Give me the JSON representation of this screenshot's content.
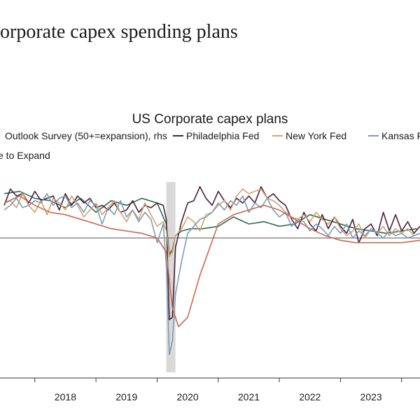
{
  "page": {
    "heading": "orporate capex spending plans"
  },
  "chart_data": {
    "type": "line",
    "title": "US Corporate capex plans",
    "xlabel": "",
    "ylabel": "",
    "x_tick_labels": [
      "2018",
      "2019",
      "2020",
      "2021",
      "2022",
      "2023"
    ],
    "x_tick_positions": [
      2018.5,
      2019.5,
      2020.5,
      2021.5,
      2022.5,
      2023.5
    ],
    "xlim": [
      2017.43,
      2024.3
    ],
    "ylim": [
      -3.0,
      1.35
    ],
    "reference_line": 0,
    "shaded_period": [
      2020.15,
      2020.3
    ],
    "colors": {
      "shade": "#d9d9d9",
      "reference": "#555555",
      "axis": "#333333"
    },
    "series": [
      {
        "name": "Outlook Survey (50+=expansion), rhs",
        "color": "#2e6b4f",
        "legend_label": "Outlook Survey (50+=expansion), rhs",
        "x": [
          2017.5,
          2017.75,
          2018.0,
          2018.25,
          2018.5,
          2018.75,
          2019.0,
          2019.25,
          2019.5,
          2019.75,
          2020.0,
          2020.15,
          2020.2,
          2020.25,
          2020.3,
          2020.4,
          2020.55,
          2020.75,
          2021.0,
          2021.25,
          2021.5,
          2021.75,
          2022.0,
          2022.25,
          2022.5,
          2022.75,
          2023.0,
          2023.25,
          2023.5,
          2023.75,
          2024.0,
          2024.25
        ],
        "y": [
          0.95,
          1.0,
          0.85,
          0.8,
          0.65,
          0.85,
          0.55,
          0.8,
          0.7,
          0.85,
          0.75,
          0.3,
          -0.35,
          -0.25,
          0.05,
          0.15,
          0.2,
          0.2,
          0.25,
          0.45,
          0.3,
          0.35,
          0.25,
          0.3,
          0.5,
          0.4,
          0.3,
          0.2,
          0.15,
          0.1,
          0.15,
          0.2
        ]
      },
      {
        "name": "Philadelphia Fed",
        "color": "#4a1f3d",
        "legend_label": "Philadelphia Fed",
        "x": [
          2017.5,
          2017.6,
          2017.7,
          2017.8,
          2017.9,
          2018.0,
          2018.1,
          2018.2,
          2018.3,
          2018.4,
          2018.5,
          2018.6,
          2018.7,
          2018.8,
          2018.9,
          2019.0,
          2019.1,
          2019.2,
          2019.3,
          2019.4,
          2019.5,
          2019.6,
          2019.7,
          2019.8,
          2019.9,
          2020.0,
          2020.1,
          2020.15,
          2020.2,
          2020.25,
          2020.3,
          2020.4,
          2020.5,
          2020.6,
          2020.7,
          2020.8,
          2020.9,
          2021.0,
          2021.1,
          2021.2,
          2021.3,
          2021.4,
          2021.5,
          2021.6,
          2021.7,
          2021.8,
          2021.9,
          2022.0,
          2022.1,
          2022.2,
          2022.3,
          2022.4,
          2022.5,
          2022.6,
          2022.7,
          2022.8,
          2022.9,
          2023.0,
          2023.1,
          2023.2,
          2023.3,
          2023.4,
          2023.5,
          2023.6,
          2023.7,
          2023.8,
          2023.9,
          2024.0,
          2024.1,
          2024.2,
          2024.3
        ],
        "y": [
          0.7,
          1.05,
          0.9,
          0.95,
          0.75,
          1.0,
          0.8,
          0.85,
          0.9,
          0.6,
          0.95,
          0.7,
          0.9,
          0.75,
          0.85,
          0.65,
          0.7,
          0.6,
          0.75,
          0.55,
          0.6,
          0.8,
          0.55,
          0.7,
          0.65,
          0.75,
          0.7,
          0.4,
          -1.75,
          -1.7,
          -0.2,
          0.35,
          0.75,
          0.8,
          1.1,
          0.85,
          0.7,
          1.0,
          0.8,
          0.65,
          0.85,
          0.75,
          0.9,
          0.75,
          1.1,
          0.85,
          0.95,
          0.8,
          0.7,
          0.4,
          0.2,
          0.55,
          0.3,
          0.15,
          0.5,
          0.2,
          0.45,
          0.25,
          0.1,
          0.4,
          -0.1,
          0.2,
          0.3,
          0.05,
          0.55,
          0.15,
          0.5,
          0.15,
          0.35,
          0.1,
          0.25
        ]
      },
      {
        "name": "New York Fed",
        "color": "#d4a36a",
        "legend_label": "New York Fed",
        "x": [
          2017.5,
          2017.6,
          2017.7,
          2017.8,
          2017.9,
          2018.0,
          2018.1,
          2018.2,
          2018.3,
          2018.4,
          2018.5,
          2018.6,
          2018.7,
          2018.8,
          2018.9,
          2019.0,
          2019.1,
          2019.2,
          2019.3,
          2019.4,
          2019.5,
          2019.6,
          2019.7,
          2019.8,
          2019.9,
          2020.0,
          2020.1,
          2020.15,
          2020.2,
          2020.25,
          2020.3,
          2020.4,
          2020.5,
          2020.6,
          2020.7,
          2020.8,
          2020.9,
          2021.0,
          2021.1,
          2021.2,
          2021.3,
          2021.4,
          2021.5,
          2021.6,
          2021.7,
          2021.8,
          2021.9,
          2022.0,
          2022.1,
          2022.2,
          2022.3,
          2022.4,
          2022.5,
          2022.6,
          2022.7,
          2022.8,
          2022.9,
          2023.0,
          2023.1,
          2023.2,
          2023.3,
          2023.4,
          2023.5,
          2023.6,
          2023.7,
          2023.8,
          2023.9,
          2024.0,
          2024.1,
          2024.2,
          2024.3
        ],
        "y": [
          0.75,
          0.8,
          0.65,
          0.95,
          0.7,
          0.55,
          0.8,
          0.5,
          0.85,
          0.75,
          0.6,
          0.9,
          0.7,
          0.45,
          0.6,
          0.75,
          0.5,
          0.65,
          0.8,
          0.55,
          0.35,
          0.6,
          0.4,
          0.75,
          0.5,
          0.25,
          0.35,
          0.15,
          -0.4,
          -0.3,
          0.05,
          0.2,
          0.45,
          0.35,
          0.15,
          0.5,
          0.55,
          0.7,
          0.8,
          0.6,
          0.9,
          1.05,
          0.95,
          1.0,
          1.05,
          0.85,
          0.8,
          0.7,
          0.55,
          0.45,
          0.4,
          0.5,
          0.35,
          0.55,
          0.4,
          0.3,
          0.45,
          0.2,
          0.05,
          0.15,
          0.3,
          0.0,
          0.2,
          0.1,
          0.25,
          0.05,
          0.2,
          0.1,
          0.2,
          0.05,
          0.1
        ]
      },
      {
        "name": "Kansas F",
        "color": "#7a9dbb",
        "legend_label": "Kansas F",
        "x": [
          2017.5,
          2017.6,
          2017.7,
          2017.8,
          2017.9,
          2018.0,
          2018.1,
          2018.2,
          2018.3,
          2018.4,
          2018.5,
          2018.6,
          2018.7,
          2018.8,
          2018.9,
          2019.0,
          2019.1,
          2019.2,
          2019.3,
          2019.4,
          2019.5,
          2019.6,
          2019.7,
          2019.8,
          2019.9,
          2020.0,
          2020.1,
          2020.15,
          2020.2,
          2020.25,
          2020.3,
          2020.4,
          2020.5,
          2020.6,
          2020.7,
          2020.8,
          2020.9,
          2021.0,
          2021.1,
          2021.2,
          2021.3,
          2021.4,
          2021.5,
          2021.6,
          2021.7,
          2021.8,
          2021.9,
          2022.0,
          2022.1,
          2022.2,
          2022.3,
          2022.4,
          2022.5,
          2022.6,
          2022.7,
          2022.8,
          2022.9,
          2023.0,
          2023.1,
          2023.2,
          2023.3,
          2023.4,
          2023.5,
          2023.6,
          2023.7,
          2023.8,
          2023.9,
          2024.0,
          2024.1,
          2024.2,
          2024.3
        ],
        "y": [
          0.6,
          0.7,
          0.85,
          0.65,
          0.7,
          0.8,
          0.75,
          0.95,
          0.7,
          0.85,
          0.9,
          0.65,
          0.75,
          0.55,
          0.8,
          0.7,
          0.3,
          0.65,
          0.5,
          0.8,
          0.45,
          0.6,
          0.35,
          0.55,
          0.4,
          -0.1,
          0.3,
          -0.6,
          -2.5,
          -2.2,
          -1.2,
          -0.5,
          0.1,
          0.25,
          0.4,
          0.45,
          0.55,
          0.75,
          0.6,
          0.8,
          0.7,
          0.9,
          0.55,
          0.75,
          0.65,
          0.85,
          0.6,
          0.45,
          0.55,
          0.25,
          0.4,
          0.35,
          0.15,
          0.3,
          0.2,
          0.05,
          0.25,
          0.1,
          0.3,
          0.0,
          0.15,
          0.05,
          0.2,
          0.1,
          0.0,
          0.15,
          0.05,
          0.1,
          0.0,
          0.05,
          0.1
        ]
      },
      {
        "name": "e to Expand",
        "color": "#c9684f",
        "legend_label": "e to Expand",
        "x": [
          2017.5,
          2017.75,
          2018.0,
          2018.25,
          2018.5,
          2018.75,
          2019.0,
          2019.25,
          2019.5,
          2019.75,
          2020.0,
          2020.15,
          2020.25,
          2020.35,
          2020.5,
          2020.7,
          2021.0,
          2021.25,
          2021.5,
          2021.75,
          2022.0,
          2022.25,
          2022.5,
          2022.75,
          2023.0,
          2023.25,
          2023.5,
          2023.75,
          2024.0,
          2024.3
        ],
        "y": [
          0.75,
          0.9,
          0.7,
          0.55,
          0.5,
          0.4,
          0.3,
          0.2,
          0.15,
          0.1,
          0.0,
          -0.3,
          -1.5,
          -1.9,
          -1.7,
          -0.8,
          0.3,
          0.5,
          0.6,
          0.7,
          0.6,
          0.4,
          0.2,
          0.05,
          -0.05,
          -0.1,
          -0.1,
          -0.1,
          -0.1,
          -0.05
        ]
      }
    ],
    "legend_placement": "top"
  }
}
